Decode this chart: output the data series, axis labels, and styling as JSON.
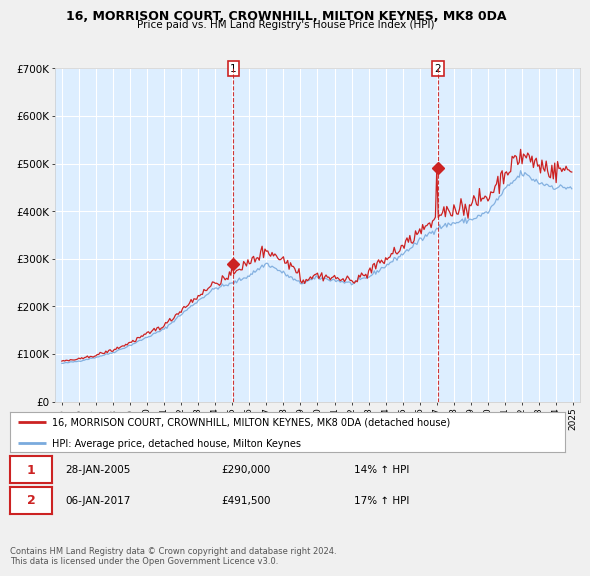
{
  "title1": "16, MORRISON COURT, CROWNHILL, MILTON KEYNES, MK8 0DA",
  "title2": "Price paid vs. HM Land Registry's House Price Index (HPI)",
  "legend_label1": "16, MORRISON COURT, CROWNHILL, MILTON KEYNES, MK8 0DA (detached house)",
  "legend_label2": "HPI: Average price, detached house, Milton Keynes",
  "sale1_date": "28-JAN-2005",
  "sale1_price": "£290,000",
  "sale1_hpi": "14% ↑ HPI",
  "sale2_date": "06-JAN-2017",
  "sale2_price": "£491,500",
  "sale2_hpi": "17% ↑ HPI",
  "footnote": "Contains HM Land Registry data © Crown copyright and database right 2024.\nThis data is licensed under the Open Government Licence v3.0.",
  "line1_color": "#cc2222",
  "line2_color": "#7aaadd",
  "marker1_color": "#cc2222",
  "vline_color": "#cc2222",
  "bg_color": "#f0f0f0",
  "plot_bg_color": "#ddeeff",
  "grid_color": "#ffffff",
  "ylim": [
    0,
    700000
  ],
  "yticks": [
    0,
    100000,
    200000,
    300000,
    400000,
    500000,
    600000,
    700000
  ],
  "sale1_x_year": 2005.07,
  "sale2_x_year": 2017.05,
  "xmin": 1994.6,
  "xmax": 2025.4
}
